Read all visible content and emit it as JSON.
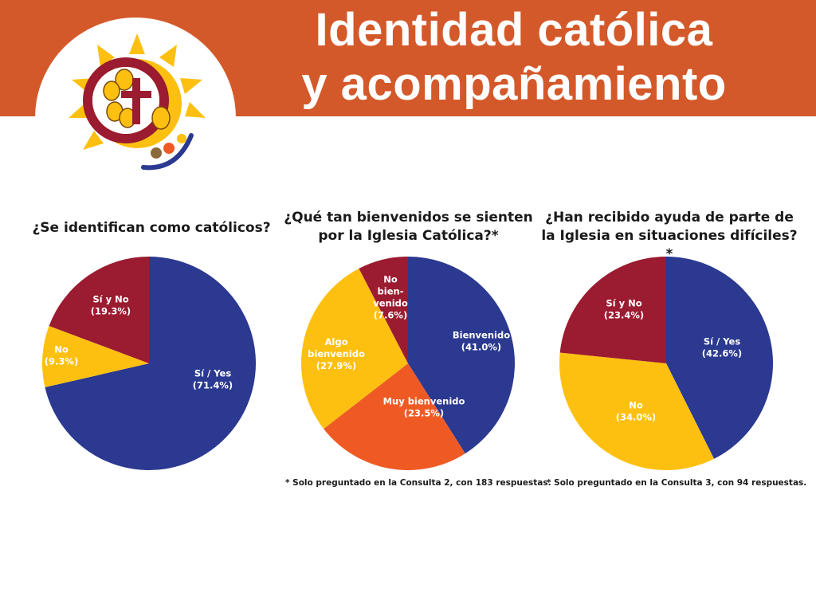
{
  "header": {
    "title_line1": "Identidad católica",
    "title_line2": "y acompañamiento",
    "color": "#d4592a"
  },
  "colors": {
    "blue": "#2b3990",
    "yellow": "#fdc011",
    "red": "#9b1b30",
    "orange": "#ef5a24"
  },
  "chart_data": [
    {
      "type": "pie",
      "title_lines": [
        "¿Se identifican como católicos?"
      ],
      "slices": [
        {
          "label_lines": [
            "Sí / Yes",
            "(71.4%)"
          ],
          "value": 71.4,
          "color": "#2b3990"
        },
        {
          "label_lines": [
            "No",
            "(9.3%)"
          ],
          "value": 9.3,
          "color": "#fdc011"
        },
        {
          "label_lines": [
            "Sí y No",
            "(19.3%)"
          ],
          "value": 19.3,
          "color": "#9b1b30"
        }
      ],
      "footnote": ""
    },
    {
      "type": "pie",
      "title_lines": [
        "¿Qué tan bienvenidos se sienten",
        "por la Iglesia Católica?*"
      ],
      "slices": [
        {
          "label_lines": [
            "Bienvenido",
            "(41.0%)"
          ],
          "value": 41.0,
          "color": "#2b3990"
        },
        {
          "label_lines": [
            "Muy bienvenido",
            "(23.5%)"
          ],
          "value": 23.5,
          "color": "#ef5a24"
        },
        {
          "label_lines": [
            "Algo",
            "bienvenido",
            "(27.9%)"
          ],
          "value": 27.9,
          "color": "#fdc011"
        },
        {
          "label_lines": [
            "No",
            "bien-",
            "venido",
            "(7.6%)"
          ],
          "value": 7.6,
          "color": "#9b1b30"
        }
      ],
      "footnote": "* Solo preguntado en la Consulta 2, con 183 respuestas."
    },
    {
      "type": "pie",
      "title_lines": [
        "¿Han recibido ayuda de parte de",
        "la Iglesia en situaciones difíciles?*"
      ],
      "slices": [
        {
          "label_lines": [
            "Sí / Yes",
            "(42.6%)"
          ],
          "value": 42.6,
          "color": "#2b3990"
        },
        {
          "label_lines": [
            "No",
            "(34.0%)"
          ],
          "value": 34.0,
          "color": "#fdc011"
        },
        {
          "label_lines": [
            "Sí y No",
            "(23.4%)"
          ],
          "value": 23.4,
          "color": "#9b1b30"
        }
      ],
      "footnote": "* Solo preguntado en la Consulta 3, con 94 respuestas."
    }
  ]
}
